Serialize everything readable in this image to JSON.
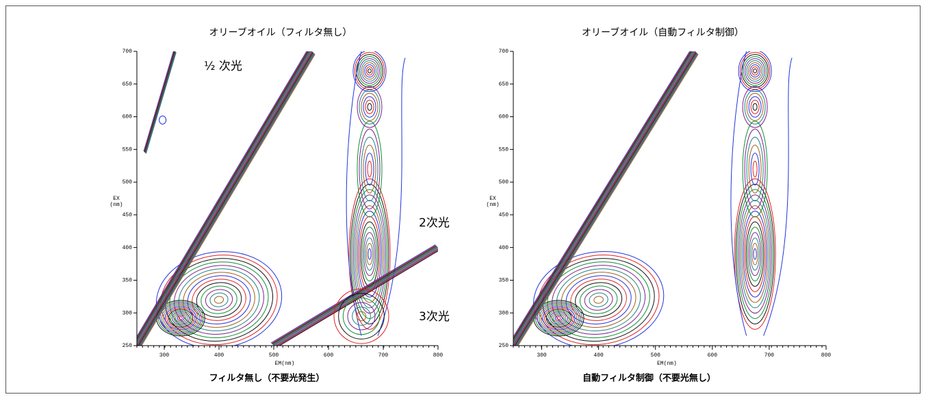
{
  "chart_data": [
    {
      "type": "contour",
      "title": "オリーブオイル（フィルタ無し）",
      "caption": "フィルタ無し（不要光発生）",
      "xlabel": "EM(nm)",
      "ylabel": [
        "EX",
        "(nm)"
      ],
      "xlim": [
        250,
        800
      ],
      "xticks": [
        300,
        400,
        500,
        600,
        700,
        800
      ],
      "ylim": [
        250,
        700
      ],
      "yticks": [
        250,
        300,
        350,
        400,
        450,
        500,
        550,
        600,
        650,
        700
      ],
      "annotations": [
        "½ 次光",
        "2次光",
        "3次光"
      ]
    },
    {
      "type": "contour",
      "title": "オリーブオイル（自動フィルタ制御）",
      "caption": "自動フィルタ制御（不要光無し）",
      "xlabel": "EM(nm)",
      "ylabel": [
        "EX",
        "(nm)"
      ],
      "xlim": [
        250,
        800
      ],
      "xticks": [
        300,
        400,
        500,
        600,
        700,
        800
      ],
      "ylim": [
        250,
        700
      ],
      "yticks": [
        250,
        300,
        350,
        400,
        450,
        500,
        550,
        600,
        650,
        700
      ]
    }
  ]
}
